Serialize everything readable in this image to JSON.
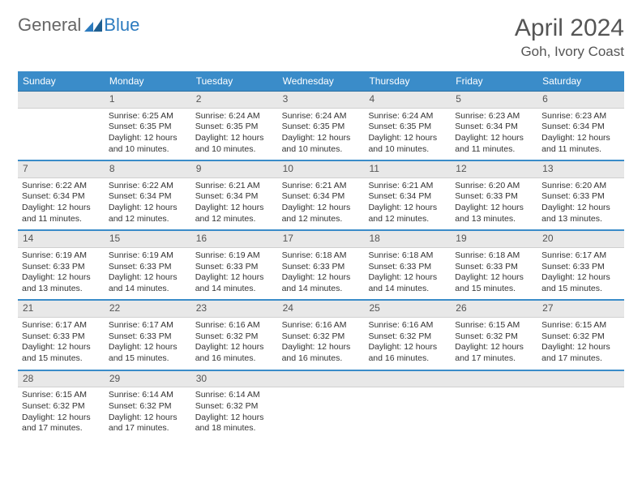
{
  "brand": {
    "part1": "General",
    "part2": "Blue"
  },
  "title": {
    "month_year": "April 2024",
    "location": "Goh, Ivory Coast"
  },
  "colors": {
    "header_bg": "#3a8cc9",
    "header_text": "#ffffff",
    "daynum_bg": "#e8e8e8",
    "week_border": "#3a8cc9",
    "brand_gray": "#666666",
    "brand_blue": "#2c7bbf",
    "text": "#333333"
  },
  "weekdays": [
    "Sunday",
    "Monday",
    "Tuesday",
    "Wednesday",
    "Thursday",
    "Friday",
    "Saturday"
  ],
  "weeks": [
    [
      {
        "n": "",
        "sun": "",
        "set": "",
        "day": ""
      },
      {
        "n": "1",
        "sun": "Sunrise: 6:25 AM",
        "set": "Sunset: 6:35 PM",
        "day": "Daylight: 12 hours and 10 minutes."
      },
      {
        "n": "2",
        "sun": "Sunrise: 6:24 AM",
        "set": "Sunset: 6:35 PM",
        "day": "Daylight: 12 hours and 10 minutes."
      },
      {
        "n": "3",
        "sun": "Sunrise: 6:24 AM",
        "set": "Sunset: 6:35 PM",
        "day": "Daylight: 12 hours and 10 minutes."
      },
      {
        "n": "4",
        "sun": "Sunrise: 6:24 AM",
        "set": "Sunset: 6:35 PM",
        "day": "Daylight: 12 hours and 10 minutes."
      },
      {
        "n": "5",
        "sun": "Sunrise: 6:23 AM",
        "set": "Sunset: 6:34 PM",
        "day": "Daylight: 12 hours and 11 minutes."
      },
      {
        "n": "6",
        "sun": "Sunrise: 6:23 AM",
        "set": "Sunset: 6:34 PM",
        "day": "Daylight: 12 hours and 11 minutes."
      }
    ],
    [
      {
        "n": "7",
        "sun": "Sunrise: 6:22 AM",
        "set": "Sunset: 6:34 PM",
        "day": "Daylight: 12 hours and 11 minutes."
      },
      {
        "n": "8",
        "sun": "Sunrise: 6:22 AM",
        "set": "Sunset: 6:34 PM",
        "day": "Daylight: 12 hours and 12 minutes."
      },
      {
        "n": "9",
        "sun": "Sunrise: 6:21 AM",
        "set": "Sunset: 6:34 PM",
        "day": "Daylight: 12 hours and 12 minutes."
      },
      {
        "n": "10",
        "sun": "Sunrise: 6:21 AM",
        "set": "Sunset: 6:34 PM",
        "day": "Daylight: 12 hours and 12 minutes."
      },
      {
        "n": "11",
        "sun": "Sunrise: 6:21 AM",
        "set": "Sunset: 6:34 PM",
        "day": "Daylight: 12 hours and 12 minutes."
      },
      {
        "n": "12",
        "sun": "Sunrise: 6:20 AM",
        "set": "Sunset: 6:33 PM",
        "day": "Daylight: 12 hours and 13 minutes."
      },
      {
        "n": "13",
        "sun": "Sunrise: 6:20 AM",
        "set": "Sunset: 6:33 PM",
        "day": "Daylight: 12 hours and 13 minutes."
      }
    ],
    [
      {
        "n": "14",
        "sun": "Sunrise: 6:19 AM",
        "set": "Sunset: 6:33 PM",
        "day": "Daylight: 12 hours and 13 minutes."
      },
      {
        "n": "15",
        "sun": "Sunrise: 6:19 AM",
        "set": "Sunset: 6:33 PM",
        "day": "Daylight: 12 hours and 14 minutes."
      },
      {
        "n": "16",
        "sun": "Sunrise: 6:19 AM",
        "set": "Sunset: 6:33 PM",
        "day": "Daylight: 12 hours and 14 minutes."
      },
      {
        "n": "17",
        "sun": "Sunrise: 6:18 AM",
        "set": "Sunset: 6:33 PM",
        "day": "Daylight: 12 hours and 14 minutes."
      },
      {
        "n": "18",
        "sun": "Sunrise: 6:18 AM",
        "set": "Sunset: 6:33 PM",
        "day": "Daylight: 12 hours and 14 minutes."
      },
      {
        "n": "19",
        "sun": "Sunrise: 6:18 AM",
        "set": "Sunset: 6:33 PM",
        "day": "Daylight: 12 hours and 15 minutes."
      },
      {
        "n": "20",
        "sun": "Sunrise: 6:17 AM",
        "set": "Sunset: 6:33 PM",
        "day": "Daylight: 12 hours and 15 minutes."
      }
    ],
    [
      {
        "n": "21",
        "sun": "Sunrise: 6:17 AM",
        "set": "Sunset: 6:33 PM",
        "day": "Daylight: 12 hours and 15 minutes."
      },
      {
        "n": "22",
        "sun": "Sunrise: 6:17 AM",
        "set": "Sunset: 6:33 PM",
        "day": "Daylight: 12 hours and 15 minutes."
      },
      {
        "n": "23",
        "sun": "Sunrise: 6:16 AM",
        "set": "Sunset: 6:32 PM",
        "day": "Daylight: 12 hours and 16 minutes."
      },
      {
        "n": "24",
        "sun": "Sunrise: 6:16 AM",
        "set": "Sunset: 6:32 PM",
        "day": "Daylight: 12 hours and 16 minutes."
      },
      {
        "n": "25",
        "sun": "Sunrise: 6:16 AM",
        "set": "Sunset: 6:32 PM",
        "day": "Daylight: 12 hours and 16 minutes."
      },
      {
        "n": "26",
        "sun": "Sunrise: 6:15 AM",
        "set": "Sunset: 6:32 PM",
        "day": "Daylight: 12 hours and 17 minutes."
      },
      {
        "n": "27",
        "sun": "Sunrise: 6:15 AM",
        "set": "Sunset: 6:32 PM",
        "day": "Daylight: 12 hours and 17 minutes."
      }
    ],
    [
      {
        "n": "28",
        "sun": "Sunrise: 6:15 AM",
        "set": "Sunset: 6:32 PM",
        "day": "Daylight: 12 hours and 17 minutes."
      },
      {
        "n": "29",
        "sun": "Sunrise: 6:14 AM",
        "set": "Sunset: 6:32 PM",
        "day": "Daylight: 12 hours and 17 minutes."
      },
      {
        "n": "30",
        "sun": "Sunrise: 6:14 AM",
        "set": "Sunset: 6:32 PM",
        "day": "Daylight: 12 hours and 18 minutes."
      },
      {
        "n": "",
        "sun": "",
        "set": "",
        "day": ""
      },
      {
        "n": "",
        "sun": "",
        "set": "",
        "day": ""
      },
      {
        "n": "",
        "sun": "",
        "set": "",
        "day": ""
      },
      {
        "n": "",
        "sun": "",
        "set": "",
        "day": ""
      }
    ]
  ]
}
